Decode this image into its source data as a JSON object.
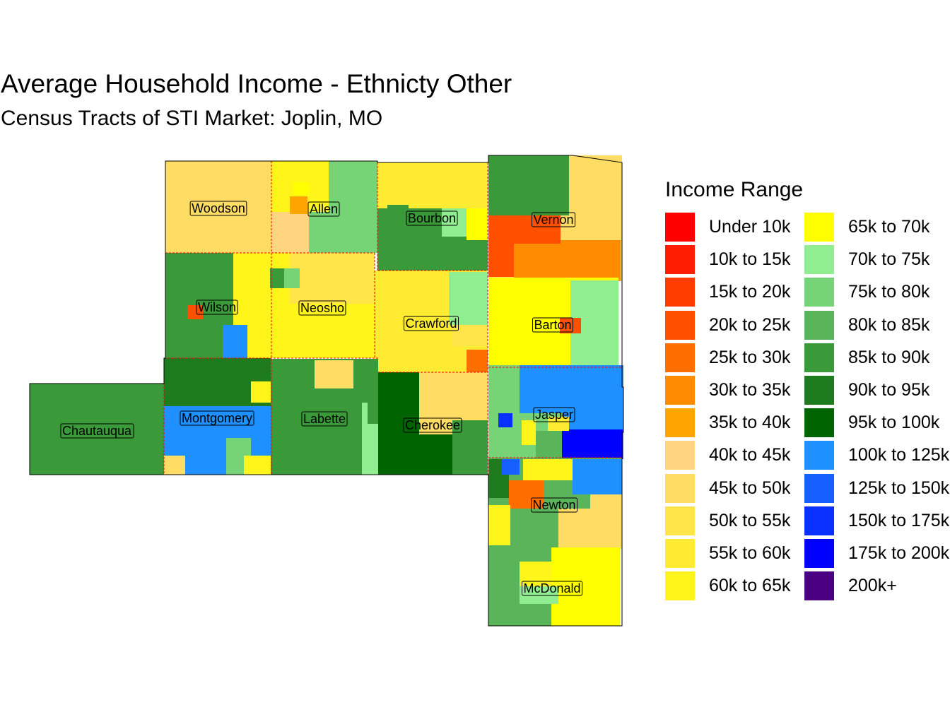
{
  "title": "Average Household Income - Ethnicty Other",
  "subtitle": "Census Tracts of STI Market: Joplin, MO",
  "legend": {
    "title": "Income Range",
    "items": [
      {
        "label": "Under 10k",
        "color": "#FF0000"
      },
      {
        "label": "10k to 15k",
        "color": "#FF1E00"
      },
      {
        "label": "15k to 20k",
        "color": "#FF3C00"
      },
      {
        "label": "20k to 25k",
        "color": "#FF5000"
      },
      {
        "label": "25k to 30k",
        "color": "#FF6E00"
      },
      {
        "label": "30k to 35k",
        "color": "#FF8C00"
      },
      {
        "label": "35k to 40k",
        "color": "#FFA500"
      },
      {
        "label": "40k to 45k",
        "color": "#FFD580"
      },
      {
        "label": "45k to 50k",
        "color": "#FFDC64"
      },
      {
        "label": "50k to 55k",
        "color": "#FFE44A"
      },
      {
        "label": "55k to 60k",
        "color": "#FFEB32"
      },
      {
        "label": "60k to 65k",
        "color": "#FFF51A"
      },
      {
        "label": "65k to 70k",
        "color": "#FFFF00"
      },
      {
        "label": "70k to 75k",
        "color": "#90EE90"
      },
      {
        "label": "75k to 80k",
        "color": "#76D376"
      },
      {
        "label": "80k to 85k",
        "color": "#5AB55A"
      },
      {
        "label": "85k to 90k",
        "color": "#3A9A3A"
      },
      {
        "label": "90k to 95k",
        "color": "#1E7B1E"
      },
      {
        "label": "95k to 100k",
        "color": "#006400"
      },
      {
        "label": "100k to 125k",
        "color": "#1E90FF"
      },
      {
        "label": "125k to 150k",
        "color": "#1560FF"
      },
      {
        "label": "150k to 175k",
        "color": "#0A30FF"
      },
      {
        "label": "175k to 200k",
        "color": "#0000FF"
      },
      {
        "label": "200k+",
        "color": "#4B0082"
      }
    ]
  },
  "counties": {
    "woodson": "Woodson",
    "allen": "Allen",
    "bourbon": "Bourbon",
    "vernon": "Vernon",
    "wilson": "Wilson",
    "neosho": "Neosho",
    "crawford": "Crawford",
    "barton": "Barton",
    "chautauqua": "Chautauqua",
    "montgomery": "Montgomery",
    "labette": "Labette",
    "cherokee": "Cherokee",
    "jasper": "Jasper",
    "newton": "Newton",
    "mcdonald": "McDonald"
  }
}
